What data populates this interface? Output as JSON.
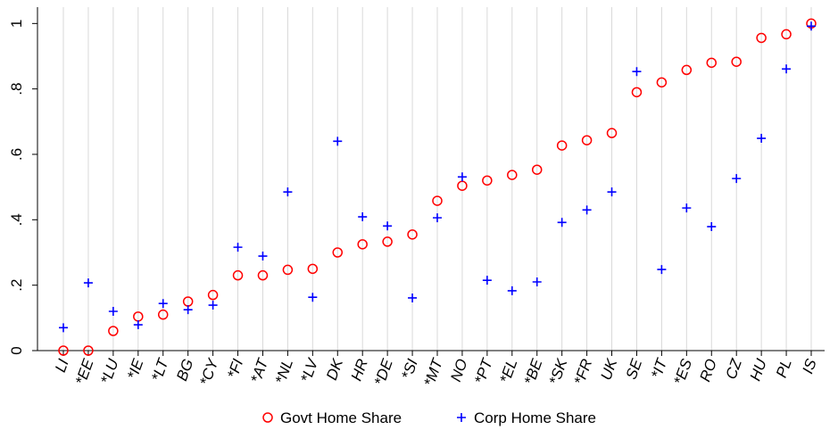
{
  "chart_data": {
    "type": "scatter",
    "categories": [
      "LI",
      "*EE",
      "*LU",
      "*IE",
      "*LT",
      "BG",
      "*CY",
      "*FI",
      "*AT",
      "*NL",
      "*LV",
      "DK",
      "HR",
      "*DE",
      "*SI",
      "*MT",
      "NO",
      "*PT",
      "*EL",
      "*BE",
      "*SK",
      "*FR",
      "UK",
      "SE",
      "*IT",
      "*ES",
      "RO",
      "CZ",
      "HU",
      "PL",
      "IS"
    ],
    "series": [
      {
        "name": "Govt Home Share",
        "color": "#ff0000",
        "marker": "circle",
        "values": [
          0,
          0,
          0.06,
          0.104,
          0.11,
          0.15,
          0.17,
          0.23,
          0.23,
          0.247,
          0.25,
          0.3,
          0.325,
          0.333,
          0.355,
          0.458,
          0.504,
          0.52,
          0.537,
          0.553,
          0.627,
          0.643,
          0.665,
          0.79,
          0.82,
          0.858,
          0.88,
          0.883,
          0.956,
          0.967,
          1
        ]
      },
      {
        "name": "Corp Home Share",
        "color": "#0000ff",
        "marker": "plus",
        "values": [
          0.07,
          0.207,
          0.12,
          0.079,
          0.144,
          0.125,
          0.139,
          0.316,
          0.289,
          0.485,
          0.163,
          0.64,
          0.409,
          0.381,
          0.161,
          0.406,
          0.531,
          0.215,
          0.183,
          0.21,
          0.392,
          0.43,
          0.485,
          0.853,
          0.248,
          0.436,
          0.379,
          0.526,
          0.649,
          0.861,
          0.992
        ]
      }
    ],
    "ylim": [
      0,
      1.05
    ],
    "yticks": [
      0,
      {
        "value": 0.2,
        "label": ".2"
      },
      {
        "value": 0.4,
        "label": ".4"
      },
      {
        "value": 0.6,
        "label": ".6"
      },
      {
        "value": 0.8,
        "label": ".8"
      },
      1
    ],
    "xgrid": true,
    "legend": "bottom"
  }
}
